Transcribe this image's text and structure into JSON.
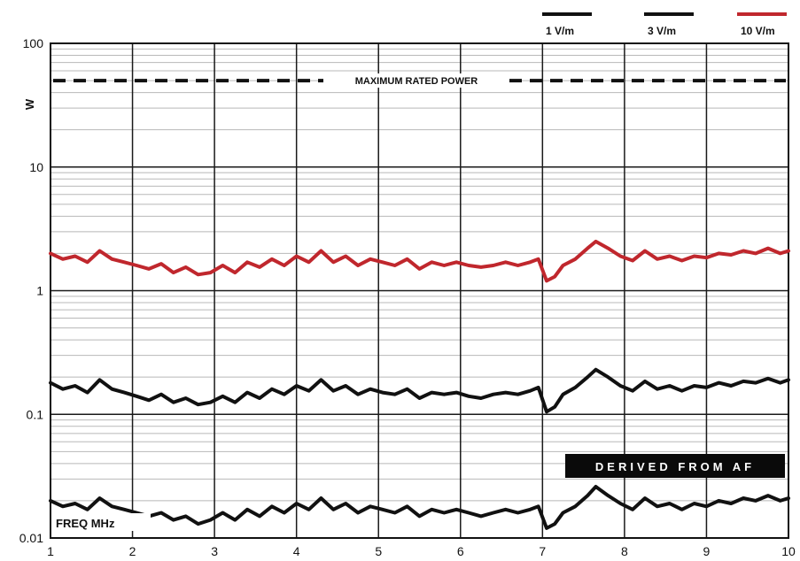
{
  "chart_data": {
    "type": "line",
    "ylabel": "W",
    "xlabel": "FREQ MHz",
    "xlim": [
      1,
      10
    ],
    "ylim": [
      0.01,
      100
    ],
    "yscale": "log",
    "x_ticks": [
      "1",
      "2",
      "3",
      "4",
      "5",
      "6",
      "7",
      "8",
      "9",
      "10"
    ],
    "y_ticks": [
      {
        "value": 100,
        "label": "100"
      },
      {
        "value": 10,
        "label": "10"
      },
      {
        "value": 1,
        "label": "1"
      },
      {
        "value": 0.1,
        "label": "0.1"
      },
      {
        "value": 0.01,
        "label": "0.01"
      }
    ],
    "grid": true,
    "legend_position": "top-right",
    "series": [
      {
        "name": "1 V/m",
        "color": "#111111",
        "x": [
          1.0,
          1.15,
          1.3,
          1.45,
          1.6,
          1.75,
          1.9,
          2.05,
          2.2,
          2.35,
          2.5,
          2.65,
          2.8,
          2.95,
          3.1,
          3.25,
          3.4,
          3.55,
          3.7,
          3.85,
          4.0,
          4.15,
          4.3,
          4.45,
          4.6,
          4.75,
          4.9,
          5.05,
          5.2,
          5.35,
          5.5,
          5.65,
          5.8,
          5.95,
          6.1,
          6.25,
          6.4,
          6.55,
          6.7,
          6.85,
          6.95,
          7.05,
          7.15,
          7.25,
          7.4,
          7.55,
          7.65,
          7.8,
          7.95,
          8.1,
          8.25,
          8.4,
          8.55,
          8.7,
          8.85,
          9.0,
          9.15,
          9.3,
          9.45,
          9.6,
          9.75,
          9.9,
          10.0
        ],
        "values": [
          0.02,
          0.018,
          0.019,
          0.017,
          0.021,
          0.018,
          0.017,
          0.016,
          0.015,
          0.016,
          0.014,
          0.015,
          0.013,
          0.014,
          0.016,
          0.014,
          0.017,
          0.015,
          0.018,
          0.016,
          0.019,
          0.017,
          0.021,
          0.017,
          0.019,
          0.016,
          0.018,
          0.017,
          0.016,
          0.018,
          0.015,
          0.017,
          0.016,
          0.017,
          0.016,
          0.015,
          0.016,
          0.017,
          0.016,
          0.017,
          0.018,
          0.012,
          0.013,
          0.016,
          0.018,
          0.022,
          0.026,
          0.022,
          0.019,
          0.017,
          0.021,
          0.018,
          0.019,
          0.017,
          0.019,
          0.018,
          0.02,
          0.019,
          0.021,
          0.02,
          0.022,
          0.02,
          0.021
        ]
      },
      {
        "name": "3 V/m",
        "color": "#111111",
        "x": [
          1.0,
          1.15,
          1.3,
          1.45,
          1.6,
          1.75,
          1.9,
          2.05,
          2.2,
          2.35,
          2.5,
          2.65,
          2.8,
          2.95,
          3.1,
          3.25,
          3.4,
          3.55,
          3.7,
          3.85,
          4.0,
          4.15,
          4.3,
          4.45,
          4.6,
          4.75,
          4.9,
          5.05,
          5.2,
          5.35,
          5.5,
          5.65,
          5.8,
          5.95,
          6.1,
          6.25,
          6.4,
          6.55,
          6.7,
          6.85,
          6.95,
          7.05,
          7.15,
          7.25,
          7.4,
          7.55,
          7.65,
          7.8,
          7.95,
          8.1,
          8.25,
          8.4,
          8.55,
          8.7,
          8.85,
          9.0,
          9.15,
          9.3,
          9.45,
          9.6,
          9.75,
          9.9,
          10.0
        ],
        "values": [
          0.18,
          0.16,
          0.17,
          0.15,
          0.19,
          0.16,
          0.15,
          0.14,
          0.13,
          0.145,
          0.125,
          0.135,
          0.12,
          0.125,
          0.14,
          0.125,
          0.15,
          0.135,
          0.16,
          0.145,
          0.17,
          0.155,
          0.19,
          0.155,
          0.17,
          0.145,
          0.16,
          0.15,
          0.145,
          0.16,
          0.135,
          0.15,
          0.145,
          0.15,
          0.14,
          0.135,
          0.145,
          0.15,
          0.145,
          0.155,
          0.165,
          0.105,
          0.115,
          0.145,
          0.165,
          0.2,
          0.23,
          0.2,
          0.17,
          0.155,
          0.185,
          0.16,
          0.17,
          0.155,
          0.17,
          0.165,
          0.18,
          0.17,
          0.185,
          0.18,
          0.195,
          0.18,
          0.19
        ]
      },
      {
        "name": "10 V/m",
        "color": "#c0272d",
        "x": [
          1.0,
          1.15,
          1.3,
          1.45,
          1.6,
          1.75,
          1.9,
          2.05,
          2.2,
          2.35,
          2.5,
          2.65,
          2.8,
          2.95,
          3.1,
          3.25,
          3.4,
          3.55,
          3.7,
          3.85,
          4.0,
          4.15,
          4.3,
          4.45,
          4.6,
          4.75,
          4.9,
          5.05,
          5.2,
          5.35,
          5.5,
          5.65,
          5.8,
          5.95,
          6.1,
          6.25,
          6.4,
          6.55,
          6.7,
          6.85,
          6.95,
          7.05,
          7.15,
          7.25,
          7.4,
          7.55,
          7.65,
          7.8,
          7.95,
          8.1,
          8.25,
          8.4,
          8.55,
          8.7,
          8.85,
          9.0,
          9.15,
          9.3,
          9.45,
          9.6,
          9.75,
          9.9,
          10.0
        ],
        "values": [
          2.0,
          1.8,
          1.9,
          1.7,
          2.1,
          1.8,
          1.7,
          1.6,
          1.5,
          1.65,
          1.4,
          1.55,
          1.35,
          1.4,
          1.6,
          1.4,
          1.7,
          1.55,
          1.8,
          1.6,
          1.9,
          1.7,
          2.1,
          1.7,
          1.9,
          1.6,
          1.8,
          1.7,
          1.6,
          1.8,
          1.5,
          1.7,
          1.6,
          1.7,
          1.6,
          1.55,
          1.6,
          1.7,
          1.6,
          1.7,
          1.8,
          1.2,
          1.3,
          1.6,
          1.8,
          2.2,
          2.5,
          2.2,
          1.9,
          1.75,
          2.1,
          1.8,
          1.9,
          1.75,
          1.9,
          1.85,
          2.0,
          1.95,
          2.1,
          2.0,
          2.2,
          2.0,
          2.1
        ]
      }
    ],
    "reference_line": {
      "label": "MAXIMUM RATED POWER",
      "value": 50,
      "style": "dashed"
    },
    "annotations": [
      {
        "text": "DERIVED FROM AF",
        "position": "lower-right"
      }
    ]
  }
}
